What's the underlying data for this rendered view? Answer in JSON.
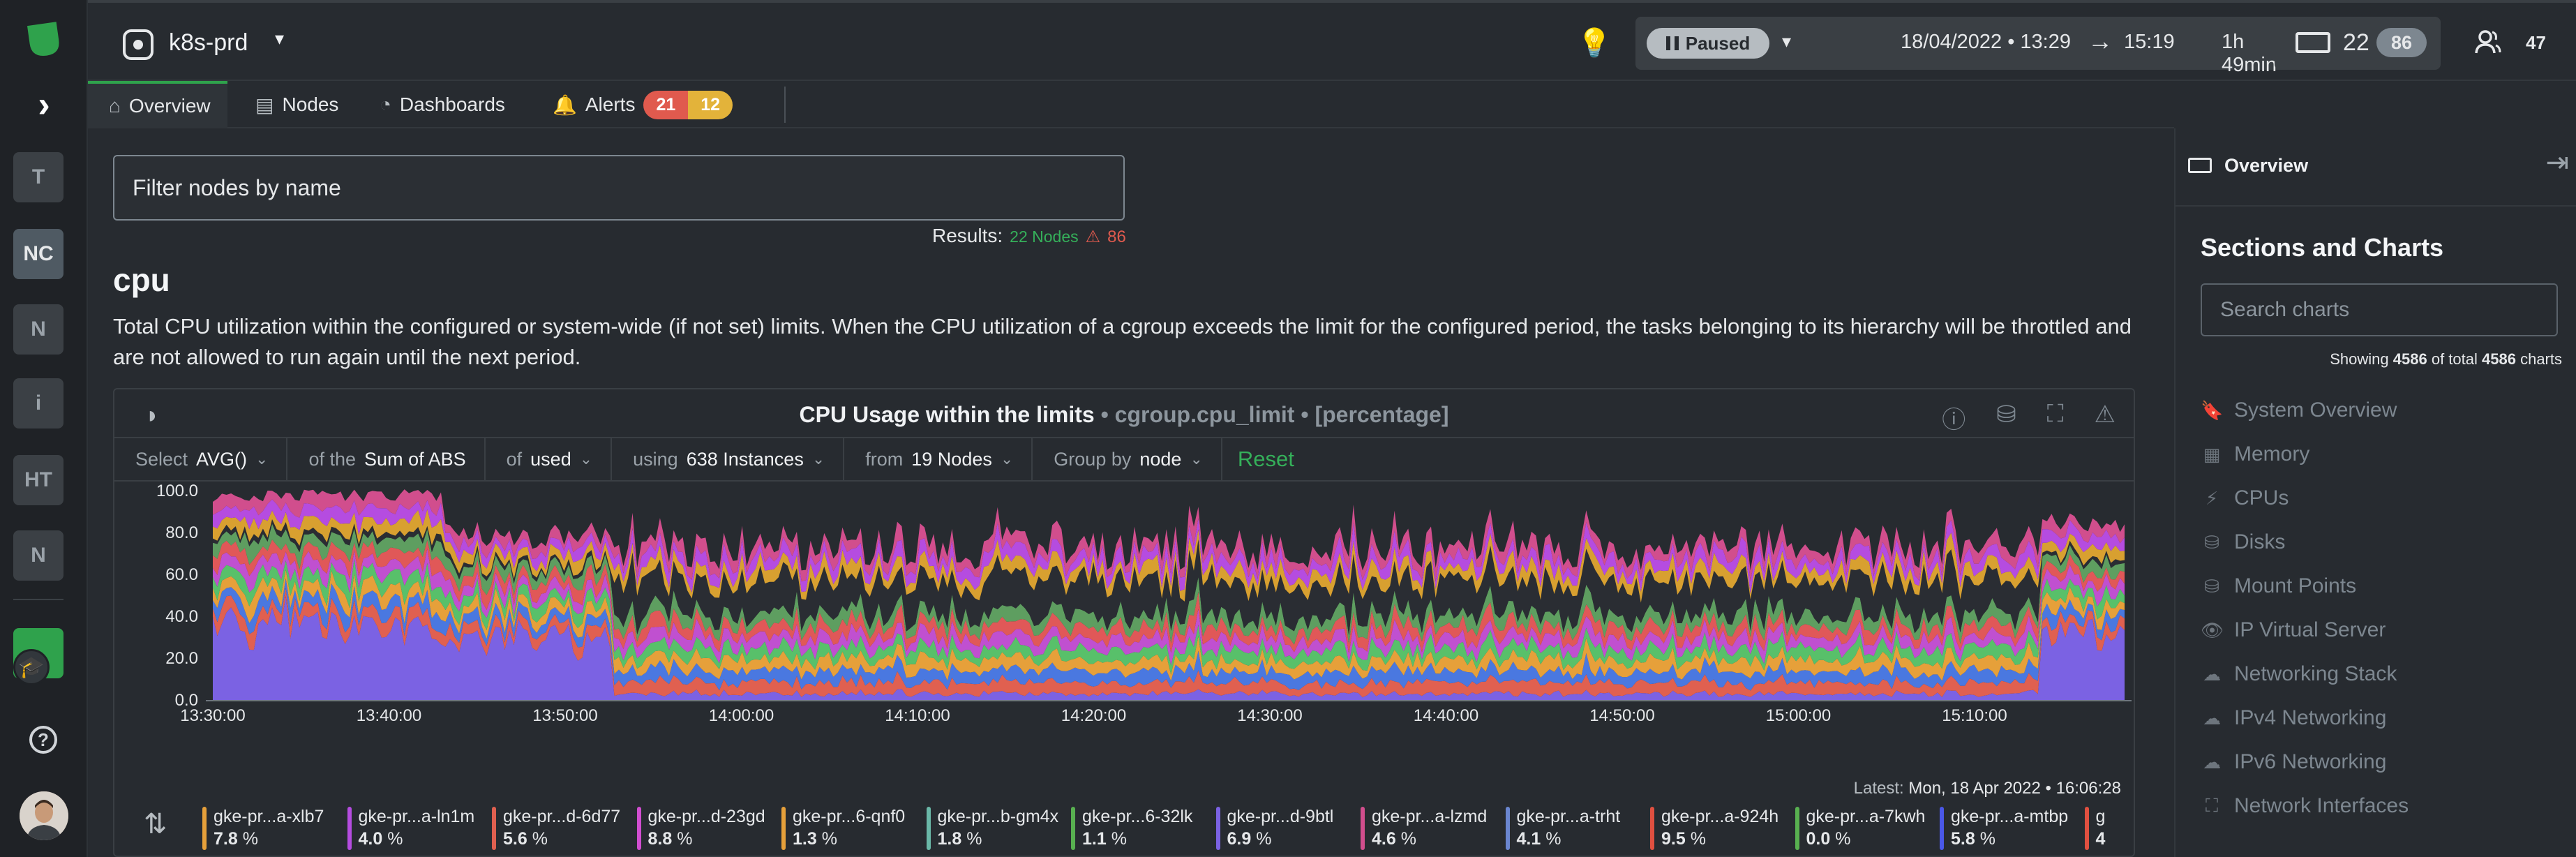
{
  "sidebar": {
    "spaces": [
      "T",
      "NC",
      "N",
      "i",
      "HT",
      "N"
    ]
  },
  "header": {
    "room_name": "k8s-prd",
    "status": "Paused",
    "start_time": "18/04/2022 • 13:29",
    "end_time": "15:19",
    "duration": "1h 49min",
    "nodes_count": "22",
    "nodes_badge": "86",
    "users_count": "47"
  },
  "tabs": {
    "overview": "Overview",
    "nodes": "Nodes",
    "dashboards": "Dashboards",
    "alerts": "Alerts",
    "alerts_critical": "21",
    "alerts_warning": "12"
  },
  "main": {
    "filter_placeholder": "Filter nodes by name",
    "results_label": "Results:",
    "results_nodes": "22 Nodes",
    "results_warn_icon": "⚠",
    "results_warn": "86",
    "section_title": "cpu",
    "section_desc": "Total CPU utilization within the configured or system-wide (if not set) limits. When the CPU utilization of a cgroup exceeds the limit for the configured period, the tasks belonging to its hierarchy will be throttled and are not allowed to run again until the next period."
  },
  "chart": {
    "title": "CPU Usage within the limits",
    "context": "• cgroup.cpu_limit • [percentage]",
    "controls": {
      "select_label": "Select",
      "select_value": "AVG()",
      "of_the_label": "of the",
      "of_the_value": "Sum of ABS",
      "of_label": "of",
      "of_value": "used",
      "using_label": "using",
      "using_value": "638 Instances",
      "from_label": "from",
      "from_value": "19 Nodes",
      "group_label": "Group by",
      "group_value": "node",
      "reset": "Reset"
    },
    "latest_label": "Latest:",
    "latest_value": "Mon, 18 Apr 2022 • 16:06:28"
  },
  "chart_data": {
    "type": "area",
    "title": "CPU Usage within the limits",
    "xlabel": "",
    "ylabel": "",
    "ylim": [
      0,
      100
    ],
    "y_ticks": [
      "100.0",
      "80.0",
      "60.0",
      "40.0",
      "20.0",
      "0.0"
    ],
    "x_ticks": [
      "13:30:00",
      "13:40:00",
      "13:50:00",
      "14:00:00",
      "14:10:00",
      "14:20:00",
      "14:30:00",
      "14:40:00",
      "14:50:00",
      "15:00:00",
      "15:10:00"
    ],
    "stacked": true,
    "series_colors": [
      "#7b62e3",
      "#e06050",
      "#4a78e0",
      "#e6a03a",
      "#58c06a",
      "#c050d0",
      "#e05858",
      "#5e9e60",
      "#2a2d33",
      "#d8a030",
      "#b54ce0",
      "#d14e8d"
    ]
  },
  "legend": [
    {
      "name": "gke-pr...a-xlb7",
      "value": "7.8",
      "unit": "%",
      "color": "#e6a03a"
    },
    {
      "name": "gke-pr...a-ln1m",
      "value": "4.0",
      "unit": "%",
      "color": "#b54ce0"
    },
    {
      "name": "gke-pr...d-6d77",
      "value": "5.6",
      "unit": "%",
      "color": "#e06050"
    },
    {
      "name": "gke-pr...d-23gd",
      "value": "8.8",
      "unit": "%",
      "color": "#d14ed0"
    },
    {
      "name": "gke-pr...6-qnf0",
      "value": "1.3",
      "unit": "%",
      "color": "#e6a03a"
    },
    {
      "name": "gke-pr...b-gm4x",
      "value": "1.8",
      "unit": "%",
      "color": "#6ab8a8"
    },
    {
      "name": "gke-pr...6-32lk",
      "value": "1.1",
      "unit": "%",
      "color": "#58b050"
    },
    {
      "name": "gke-pr...d-9btl",
      "value": "6.9",
      "unit": "%",
      "color": "#7b62e3"
    },
    {
      "name": "gke-pr...a-lzmd",
      "value": "4.6",
      "unit": "%",
      "color": "#d14e8d"
    },
    {
      "name": "gke-pr...a-trht",
      "value": "4.1",
      "unit": "%",
      "color": "#6a86d0"
    },
    {
      "name": "gke-pr...a-924h",
      "value": "9.5",
      "unit": "%",
      "color": "#e05040"
    },
    {
      "name": "gke-pr...a-7kwh",
      "value": "0.0",
      "unit": "%",
      "color": "#58b050"
    },
    {
      "name": "gke-pr...a-mtbp",
      "value": "5.8",
      "unit": "%",
      "color": "#4a58e8"
    },
    {
      "name": "g",
      "value": "4",
      "unit": "",
      "color": "#e05040"
    }
  ],
  "right_panel": {
    "header": "Overview",
    "title": "Sections and Charts",
    "search_placeholder": "Search charts",
    "showing_prefix": "Showing",
    "showing_count": "4586",
    "showing_mid": "of total",
    "showing_total": "4586",
    "showing_suffix": "charts",
    "items": [
      {
        "label": "System Overview",
        "icon": "bookmark-icon"
      },
      {
        "label": "Memory",
        "icon": "memory-icon"
      },
      {
        "label": "CPUs",
        "icon": "bolt-icon"
      },
      {
        "label": "Disks",
        "icon": "disk-icon"
      },
      {
        "label": "Mount Points",
        "icon": "disk-icon"
      },
      {
        "label": "IP Virtual Server",
        "icon": "eye-icon"
      },
      {
        "label": "Networking Stack",
        "icon": "cloud-icon"
      },
      {
        "label": "IPv4 Networking",
        "icon": "cloud-icon"
      },
      {
        "label": "IPv6 Networking",
        "icon": "cloud-icon"
      },
      {
        "label": "Network Interfaces",
        "icon": "network-icon"
      }
    ]
  }
}
